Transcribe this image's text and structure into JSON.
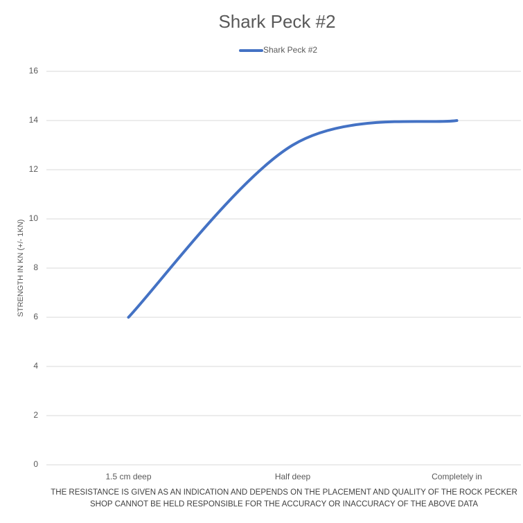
{
  "chart_data": {
    "type": "line",
    "title": "Shark Peck #2",
    "categories": [
      "1.5 cm deep",
      "Half deep",
      "Completely in"
    ],
    "series": [
      {
        "name": "Shark Peck #2",
        "color": "#4472c4",
        "values": [
          6,
          13,
          14
        ]
      }
    ],
    "ylim": [
      0,
      16
    ],
    "yticks": [
      0,
      2,
      4,
      6,
      8,
      10,
      12,
      14,
      16
    ],
    "grid": true,
    "smooth": true,
    "legend": "top",
    "y_label": "STRENGTH IN KN (+/- 1KN)",
    "x_label": "THE RESISTANCE IS GIVEN AS AN INDICATION AND DEPENDS ON THE PLACEMENT AND QUALITY OF THE ROCK PECKER SHOP CANNOT BE HELD RESPONSIBLE FOR THE ACCURACY OR INACCURACY OF THE ABOVE DATA"
  }
}
